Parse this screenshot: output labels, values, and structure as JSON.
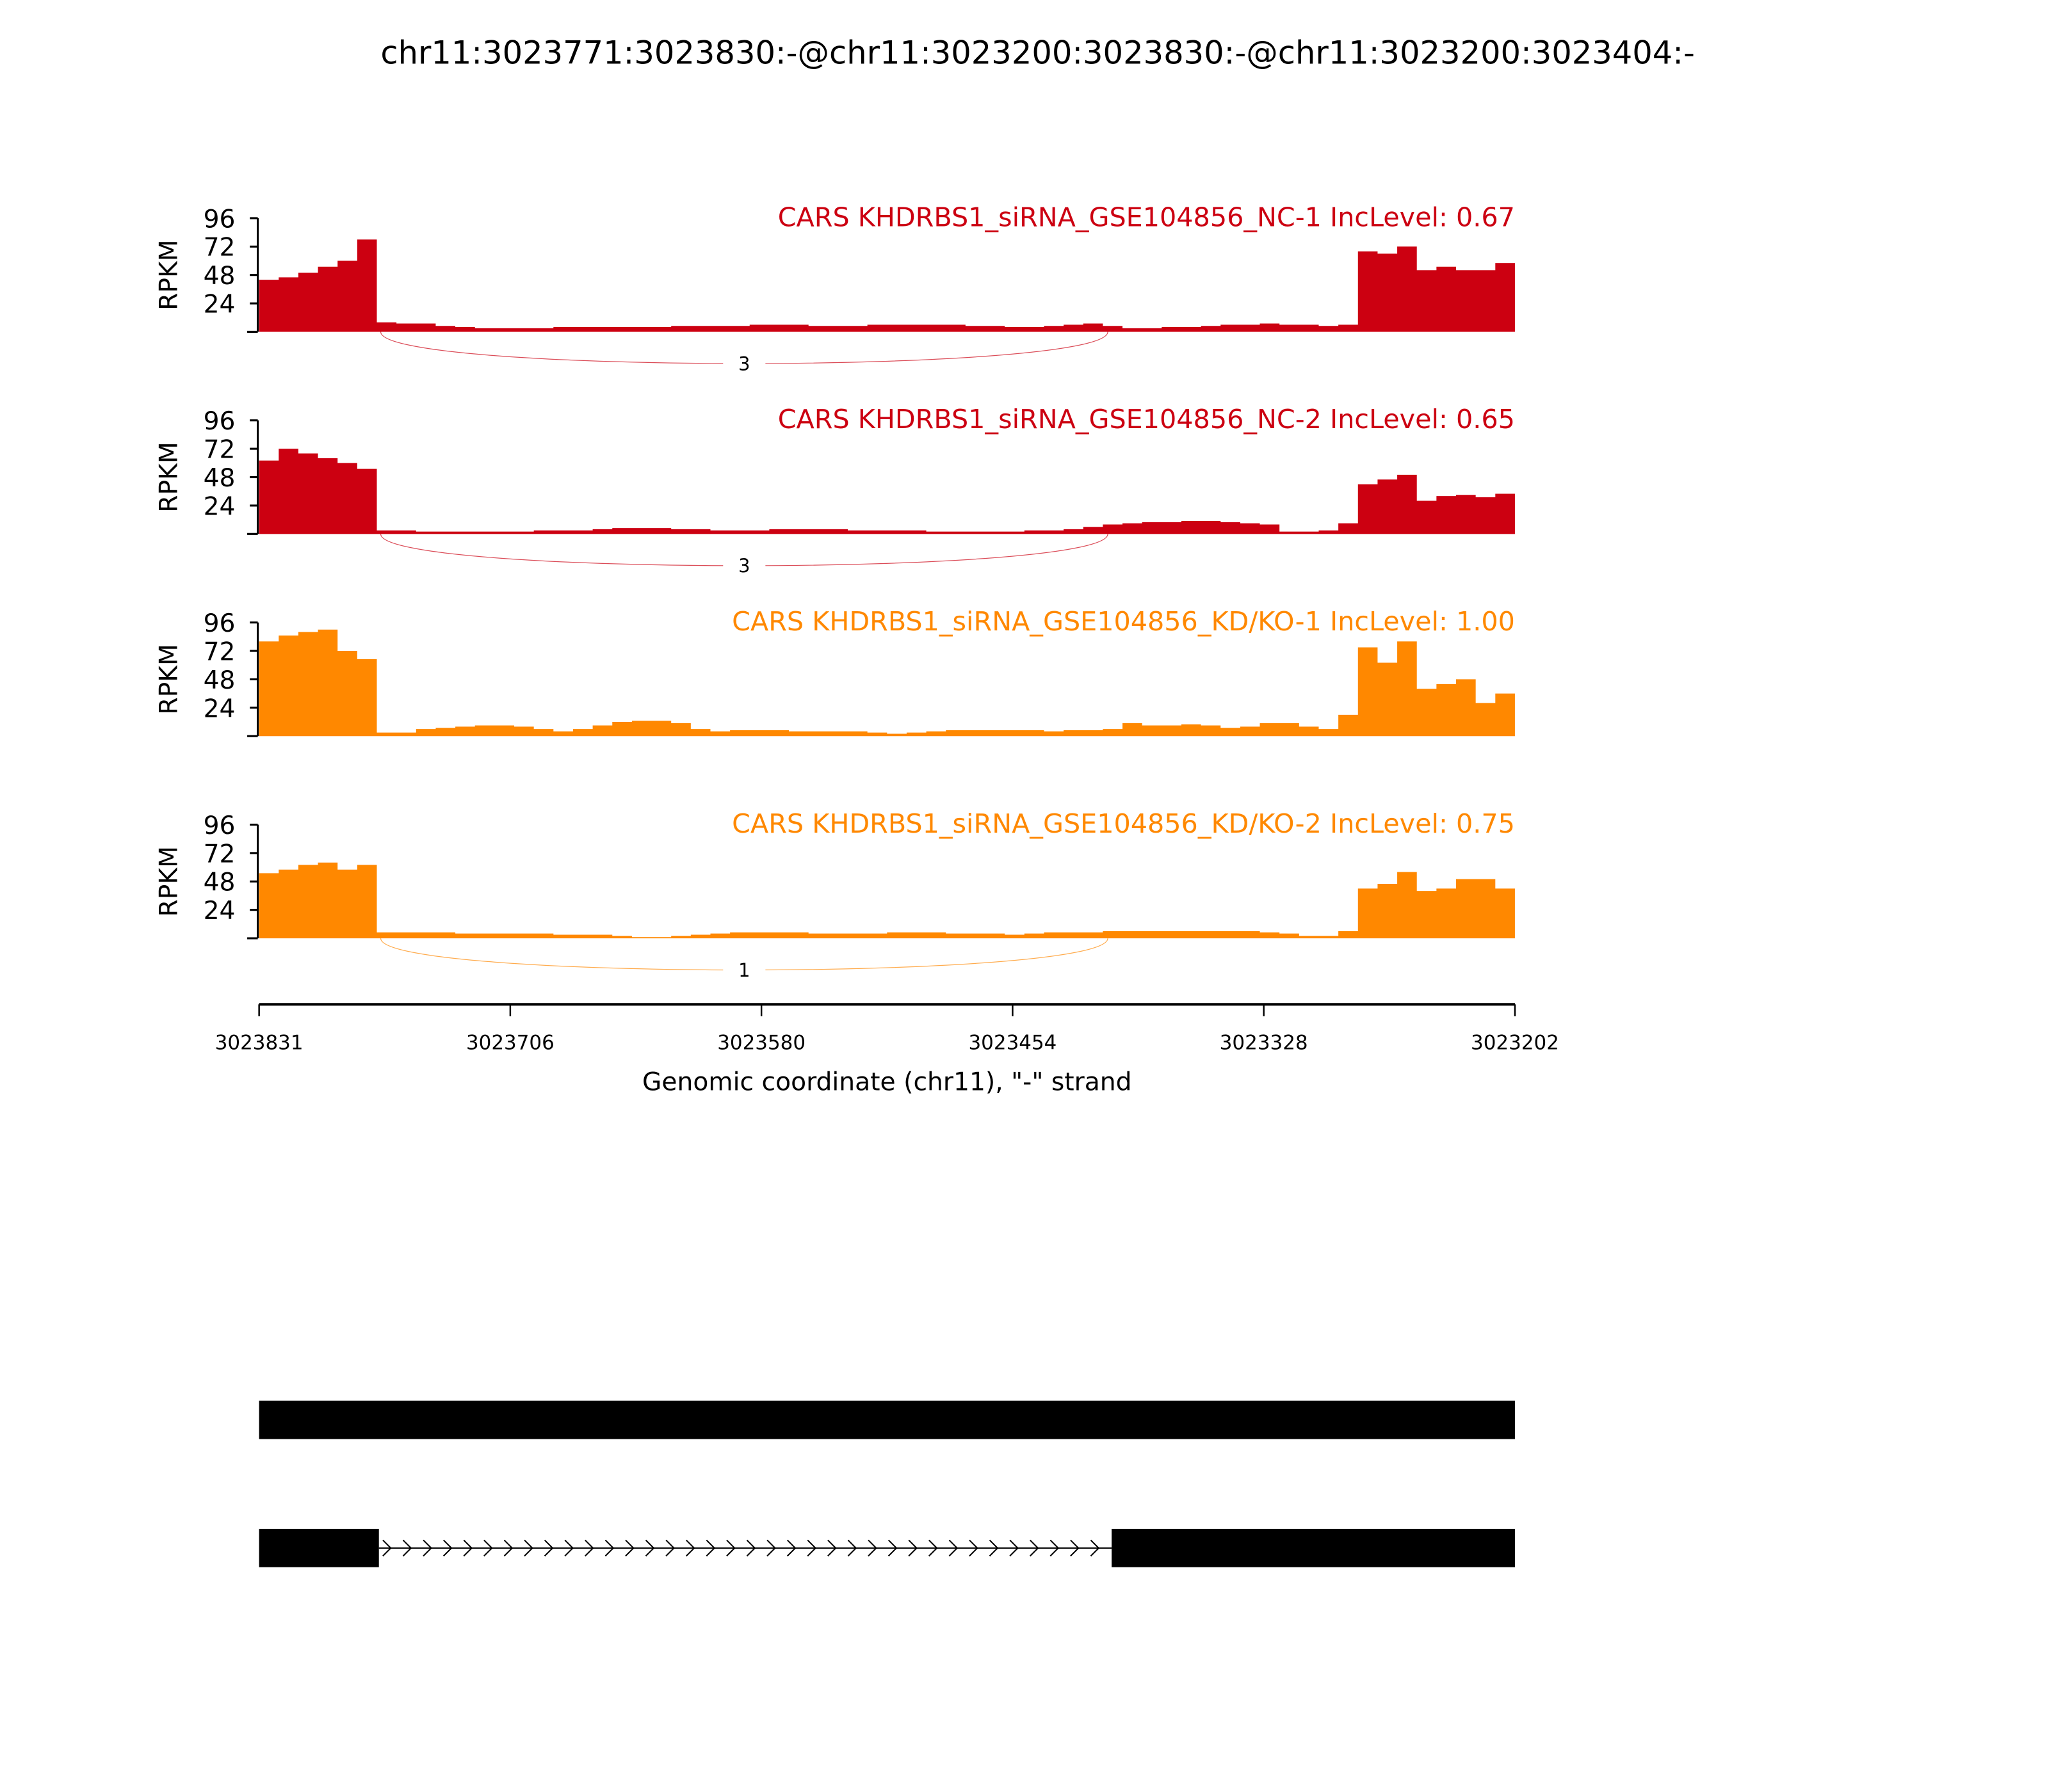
{
  "chart_data": {
    "type": "area",
    "title": "chr11:3023771:3023830:-@chr11:3023200:3023830:-@chr11:3023200:3023404:-",
    "xlabel": "Genomic coordinate (chr11), \"-\" strand",
    "ylabel": "RPKM",
    "xlim": [
      3023831,
      3023202
    ],
    "xticks": [
      "3023831",
      "3023706",
      "3023580",
      "3023454",
      "3023328",
      "3023202"
    ],
    "ylim": [
      0,
      96
    ],
    "yticks": [
      "24",
      "48",
      "72",
      "96"
    ],
    "tracks": [
      {
        "label": "CARS KHDRBS1_siRNA_GSE104856_NC-1 IncLevel: 0.67",
        "color": "#cc0011",
        "junction_count": "3",
        "values": [
          44,
          46,
          50,
          55,
          60,
          78,
          8,
          7,
          7,
          5,
          4,
          3,
          3,
          3,
          3,
          4,
          4,
          4,
          4,
          4,
          4,
          5,
          5,
          5,
          5,
          6,
          6,
          6,
          5,
          5,
          5,
          6,
          6,
          6,
          6,
          6,
          5,
          5,
          4,
          4,
          5,
          6,
          7,
          5,
          3,
          3,
          4,
          4,
          5,
          6,
          6,
          7,
          6,
          6,
          5,
          6,
          68,
          66,
          72,
          52,
          55,
          52,
          52,
          58
        ]
      },
      {
        "label": "CARS KHDRBS1_siRNA_GSE104856_NC-2 IncLevel: 0.65",
        "color": "#cc0011",
        "junction_count": "3",
        "values": [
          62,
          72,
          68,
          64,
          60,
          55,
          3,
          3,
          2,
          2,
          2,
          2,
          2,
          2,
          3,
          3,
          3,
          4,
          5,
          5,
          5,
          4,
          4,
          3,
          3,
          3,
          4,
          4,
          4,
          4,
          3,
          3,
          3,
          3,
          2,
          2,
          2,
          2,
          2,
          3,
          3,
          4,
          6,
          8,
          9,
          10,
          10,
          11,
          11,
          10,
          9,
          8,
          2,
          2,
          3,
          9,
          42,
          46,
          50,
          28,
          32,
          33,
          31,
          34
        ]
      },
      {
        "label": "CARS KHDRBS1_siRNA_GSE104856_KD/KO-1 IncLevel: 1.00",
        "color": "#ff8800",
        "junction_count": null,
        "values": [
          80,
          85,
          88,
          90,
          72,
          65,
          3,
          3,
          6,
          7,
          8,
          9,
          9,
          8,
          6,
          4,
          6,
          9,
          12,
          13,
          13,
          11,
          6,
          4,
          5,
          5,
          5,
          4,
          4,
          4,
          4,
          3,
          2,
          3,
          4,
          5,
          5,
          5,
          5,
          5,
          4,
          5,
          5,
          6,
          11,
          9,
          9,
          10,
          9,
          7,
          8,
          11,
          11,
          8,
          6,
          18,
          75,
          62,
          80,
          40,
          44,
          48,
          28,
          36
        ]
      },
      {
        "label": "CARS KHDRBS1_siRNA_GSE104856_KD/KO-2 IncLevel: 0.75",
        "color": "#ff8800",
        "junction_count": "1",
        "values": [
          55,
          58,
          62,
          64,
          58,
          62,
          5,
          5,
          5,
          5,
          4,
          4,
          4,
          4,
          4,
          3,
          3,
          3,
          2,
          1,
          1,
          2,
          3,
          4,
          5,
          5,
          5,
          5,
          4,
          4,
          4,
          4,
          5,
          5,
          5,
          4,
          4,
          4,
          3,
          4,
          5,
          5,
          5,
          6,
          6,
          6,
          6,
          6,
          6,
          6,
          6,
          5,
          4,
          2,
          2,
          6,
          42,
          46,
          56,
          40,
          42,
          50,
          50,
          42
        ]
      }
    ],
    "gene_models": [
      {
        "exons": [
          [
            3023831,
            3023202
          ]
        ]
      },
      {
        "exons": [
          [
            3023831,
            3023771
          ],
          [
            3023404,
            3023202
          ]
        ]
      }
    ]
  }
}
